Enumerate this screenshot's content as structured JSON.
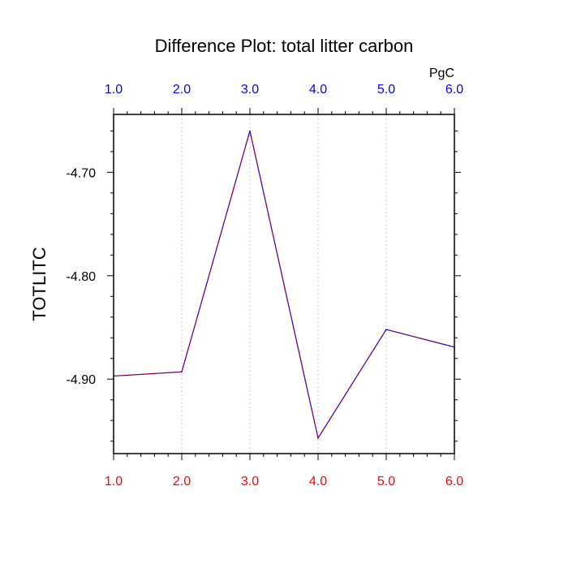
{
  "chart_data": {
    "type": "line",
    "title": "Difference Plot: total litter carbon",
    "ylabel": "TOTLITC",
    "units_label": "PgC",
    "x": [
      1,
      2,
      3,
      4,
      5,
      6
    ],
    "xlim": [
      1,
      6
    ],
    "ylim": [
      -4.972,
      -4.644
    ],
    "x_ticks": [
      1,
      2,
      3,
      4,
      5,
      6
    ],
    "x_tick_labels_bottom": [
      "1.0",
      "2.0",
      "3.0",
      "4.0",
      "5.0",
      "6.0"
    ],
    "x_tick_labels_top": [
      "1.0",
      "2.0",
      "3.0",
      "4.0",
      "5.0",
      "6.0"
    ],
    "y_ticks": [
      -4.7,
      -4.8,
      -4.9
    ],
    "y_tick_labels": [
      "-4.70",
      "-4.80",
      "-4.90"
    ],
    "series": [
      {
        "values": [
          -4.897,
          -4.893,
          -4.66,
          -4.957,
          -4.852,
          -4.869
        ]
      }
    ],
    "grid": "vertical dotted",
    "legend": "none"
  },
  "colors": {
    "line_primary": "#0000ff",
    "line_overlay": "#cc0000",
    "bottom_tick_labels": "#ff0000",
    "top_tick_labels": "#0000ff",
    "grid": "#c8c8c8",
    "axis": "#000000"
  }
}
